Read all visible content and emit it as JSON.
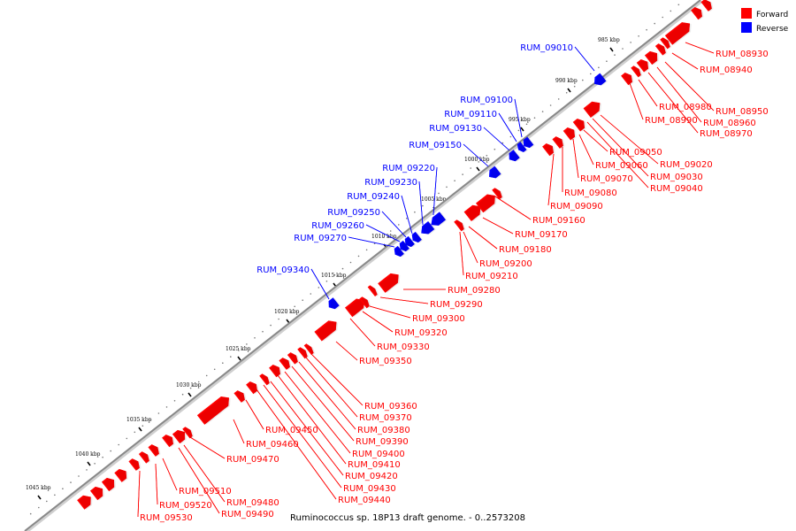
{
  "legend": {
    "items": [
      {
        "label": "Forward",
        "color": "#ff0000"
      },
      {
        "label": "Reverse",
        "color": "#0000ff"
      }
    ]
  },
  "caption": "Ruminococcus sp. 18P13 draft genome. - 0..2573208",
  "colors": {
    "forward": "#ff0000",
    "reverse": "#0000ff",
    "backbone": "#888888",
    "leader_forward": "#ff0000",
    "leader_reverse": "#0000ff"
  },
  "scale_ticks": [
    "985 kbp",
    "990 kbp",
    "995 kbp",
    "1000 kbp",
    "1005 kbp",
    "1010 kbp",
    "1015 kbp",
    "1020 kbp",
    "1025 kbp",
    "1030 kbp",
    "1035 kbp",
    "1040 kbp",
    "1045 kbp"
  ],
  "genes": {
    "reverse": [
      "RUM_09010",
      "RUM_09100",
      "RUM_09110",
      "RUM_09130",
      "RUM_09150",
      "RUM_09220",
      "RUM_09230",
      "RUM_09240",
      "RUM_09250",
      "RUM_09260",
      "RUM_09270",
      "RUM_09340"
    ],
    "forward": [
      "RUM_08930",
      "RUM_08940",
      "RUM_08950",
      "RUM_08960",
      "RUM_08970",
      "RUM_08980",
      "RUM_08990",
      "RUM_09020",
      "RUM_09030",
      "RUM_09040",
      "RUM_09050",
      "RUM_09060",
      "RUM_09070",
      "RUM_09080",
      "RUM_09090",
      "RUM_09160",
      "RUM_09170",
      "RUM_09180",
      "RUM_09200",
      "RUM_09210",
      "RUM_09280",
      "RUM_09290",
      "RUM_09300",
      "RUM_09320",
      "RUM_09330",
      "RUM_09350",
      "RUM_09360",
      "RUM_09370",
      "RUM_09380",
      "RUM_09390",
      "RUM_09400",
      "RUM_09410",
      "RUM_09420",
      "RUM_09430",
      "RUM_09440",
      "RUM_09450",
      "RUM_09460",
      "RUM_09470",
      "RUM_09480",
      "RUM_09490",
      "RUM_09510",
      "RUM_09520",
      "RUM_09530"
    ]
  }
}
